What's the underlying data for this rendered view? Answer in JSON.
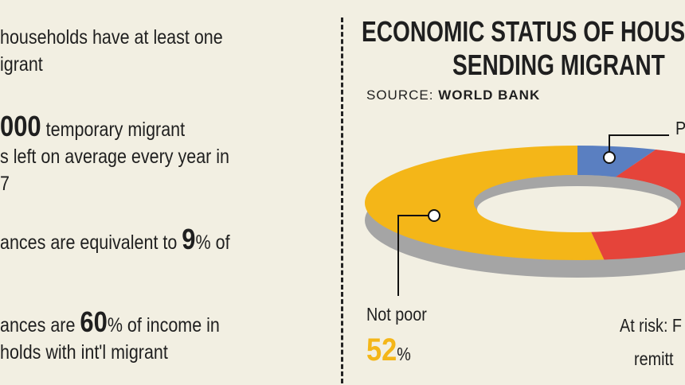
{
  "facts": [
    {
      "lines": [
        [
          "",
          "households have at least one"
        ],
        [
          "",
          "igrant"
        ]
      ]
    },
    {
      "lines": [
        [
          "000",
          " temporary migrant"
        ],
        [
          "",
          "s left on average every year in"
        ],
        [
          "",
          "7"
        ]
      ]
    },
    {
      "lines": [
        [
          "",
          "ances are equivalent to "
        ],
        [
          "",
          "% of"
        ]
      ],
      "big": "9"
    },
    {
      "lines": [
        [
          "",
          "ances are "
        ],
        [
          "",
          "% of income in"
        ],
        [
          "",
          "holds with int'l migrant"
        ]
      ],
      "big": "60"
    }
  ],
  "title": {
    "line1": "ECONOMIC STATUS OF HOUS",
    "line2": "SENDING MIGRANT"
  },
  "source": {
    "label": "SOURCE:",
    "value": "WORLD BANK"
  },
  "colors": {
    "not_poor": "#f4b618",
    "poor": "#5a7fc1",
    "at_risk": "#e5443a",
    "shadow": "#a5a5a5",
    "background": "#f2efe2"
  },
  "chart_data": {
    "type": "pie",
    "style": "donut",
    "slices": [
      {
        "label": "Not poor",
        "value": 52
      },
      {
        "label": "P",
        "value": 6
      },
      {
        "label": "At risk: F",
        "value": 42
      }
    ]
  },
  "labels": {
    "not_poor_name": "Not poor",
    "not_poor_value": "52",
    "pct_sign": "%",
    "poor_name": "P",
    "at_risk_name": "At risk: F",
    "at_risk_sub": "remitt"
  }
}
